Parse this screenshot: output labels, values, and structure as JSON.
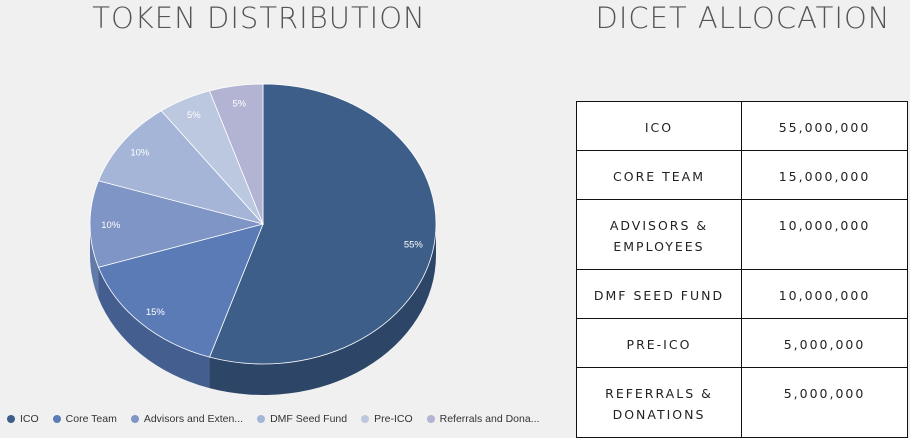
{
  "left_title": "TOKEN DISTRIBUTION",
  "right_title": "DICET ALLOCATION",
  "chart_data": {
    "type": "pie",
    "title": "TOKEN DISTRIBUTION",
    "categories": [
      "ICO",
      "Core Team",
      "Advisors and Exten...",
      "DMF Seed Fund",
      "Pre-ICO",
      "Referrals and Dona..."
    ],
    "values": [
      55,
      15,
      10,
      10,
      5,
      5
    ],
    "data_labels": [
      "55%",
      "15%",
      "10%",
      "10%",
      "5%",
      "5%"
    ],
    "colors": [
      "#3d5e88",
      "#5b7bb6",
      "#7f95c5",
      "#a5b5d8",
      "#bcc7e0",
      "#b3b3d3"
    ],
    "side_colors": [
      "#2d4566",
      "#435e8f",
      "#627aa8",
      "#8698bd",
      "#a1acc6",
      "#9797b6"
    ],
    "legend_position": "bottom",
    "start_angle_deg": 270,
    "three_d": true
  },
  "table": {
    "rows": [
      {
        "label": "ICO",
        "value": "55,000,000"
      },
      {
        "label": "CORE TEAM",
        "value": "15,000,000"
      },
      {
        "label": "ADVISORS & EMPLOYEES",
        "value": "10,000,000"
      },
      {
        "label": "DMF SEED FUND",
        "value": "10,000,000"
      },
      {
        "label": "PRE-ICO",
        "value": "5,000,000"
      },
      {
        "label": "REFERRALS & DONATIONS",
        "value": "5,000,000"
      }
    ]
  }
}
